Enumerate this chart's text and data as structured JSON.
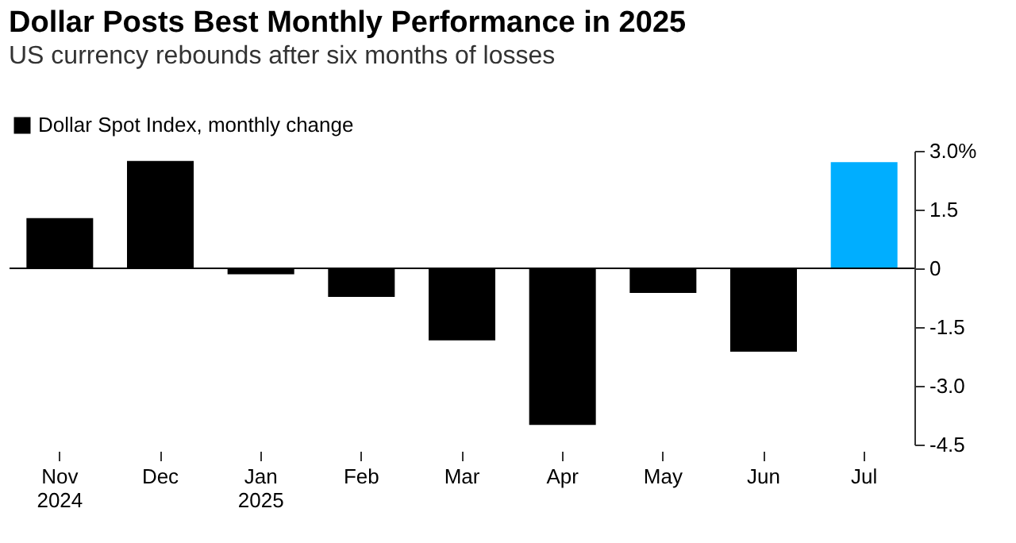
{
  "chart_data": {
    "type": "bar",
    "title": "Dollar Posts Best Monthly Performance in 2025",
    "subtitle": "US currency rebounds after six months of losses",
    "categories": [
      "Nov\n2024",
      "Dec",
      "Jan\n2025",
      "Feb",
      "Mar",
      "Apr",
      "May",
      "Jun",
      "Jul"
    ],
    "series": [
      {
        "name": "Dollar Spot Index, monthly change",
        "color": "#000000",
        "colors": [
          "#000000",
          "#000000",
          "#000000",
          "#000000",
          "#000000",
          "#000000",
          "#000000",
          "#000000",
          "#00aeff"
        ],
        "values": [
          1.28,
          2.74,
          -0.15,
          -0.73,
          -1.84,
          -4.0,
          -0.63,
          -2.13,
          2.71
        ]
      }
    ],
    "ylim": [
      -4.5,
      3.0
    ],
    "yticks": [
      {
        "value": 3.0,
        "label": "3.0%"
      },
      1.5,
      0,
      -1.5,
      {
        "value": -3.0,
        "label": "-3.0"
      },
      -4.5
    ],
    "ref_lines": [
      {
        "axis": "y",
        "value": 0,
        "color": "#000000"
      }
    ],
    "legend": "top left",
    "grid": false
  }
}
